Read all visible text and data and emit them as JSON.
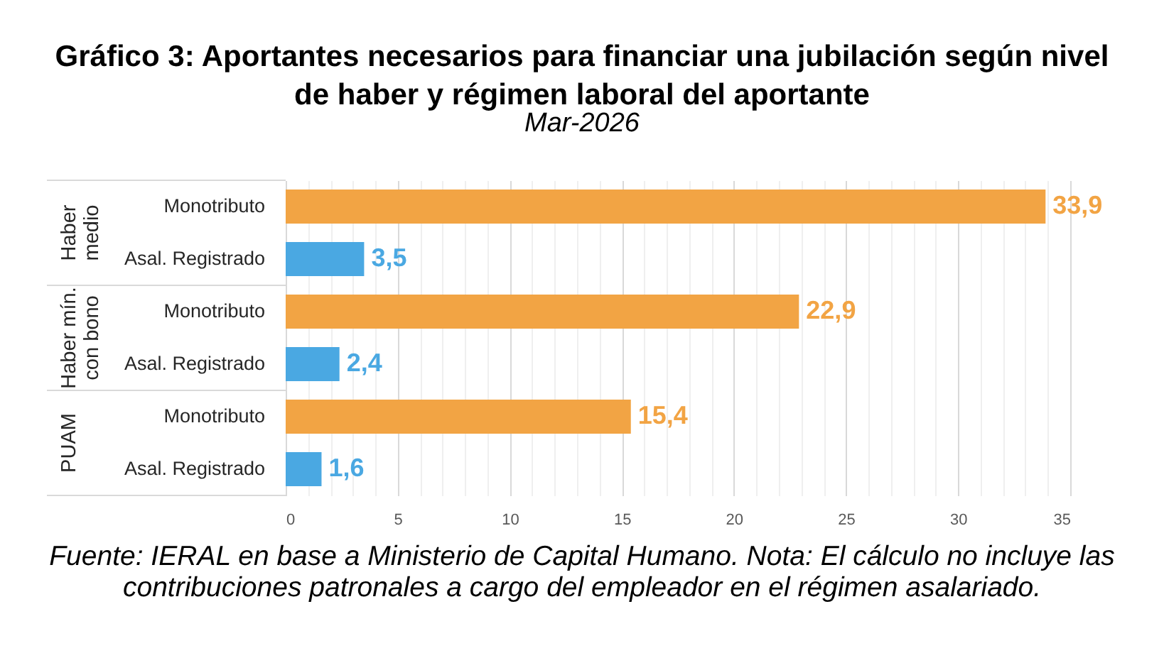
{
  "chart_data": {
    "type": "bar",
    "orientation": "horizontal",
    "title": "Gráfico 3: Aportantes necesarios para financiar una jubilación según nivel de haber y régimen laboral del aportante",
    "subtitle": "Mar-2026",
    "categories": [
      "Monotributo",
      "Asal. Registrado",
      "Monotributo",
      "Asal. Registrado",
      "Monotributo",
      "Asal. Registrado"
    ],
    "values": [
      33.9,
      3.5,
      22.9,
      2.4,
      15.4,
      1.6
    ],
    "colors": [
      "#f2a444",
      "#4aa8e2",
      "#f2a444",
      "#4aa8e2",
      "#f2a444",
      "#4aa8e2"
    ],
    "value_labels": [
      "33,9",
      "3,5",
      "22,9",
      "2,4",
      "15,4",
      "1,6"
    ],
    "xlim": [
      0,
      35
    ],
    "xticks": [
      0,
      {
        "value": 1,
        "label": null
      },
      {
        "value": 2,
        "label": null
      },
      {
        "value": 3,
        "label": null
      },
      {
        "value": 4,
        "label": null
      },
      5,
      {
        "value": 6,
        "label": null
      },
      {
        "value": 7,
        "label": null
      },
      {
        "value": 8,
        "label": null
      },
      {
        "value": 9,
        "label": null
      },
      10,
      {
        "value": 11,
        "label": null
      },
      {
        "value": 12,
        "label": null
      },
      {
        "value": 13,
        "label": null
      },
      {
        "value": 14,
        "label": null
      },
      15,
      {
        "value": 16,
        "label": null
      },
      {
        "value": 17,
        "label": null
      },
      {
        "value": 18,
        "label": null
      },
      {
        "value": 19,
        "label": null
      },
      20,
      {
        "value": 21,
        "label": null
      },
      {
        "value": 22,
        "label": null
      },
      {
        "value": 23,
        "label": null
      },
      {
        "value": 24,
        "label": null
      },
      25,
      {
        "value": 26,
        "label": null
      },
      {
        "value": 27,
        "label": null
      },
      {
        "value": 28,
        "label": null
      },
      {
        "value": 29,
        "label": null
      },
      30,
      {
        "value": 31,
        "label": null
      },
      {
        "value": 32,
        "label": null
      },
      {
        "value": 33,
        "label": null
      },
      {
        "value": 34,
        "label": null
      },
      35
    ],
    "grid": "x",
    "annotations": [
      "Haber medio",
      "Haber mín. con bono",
      "PUAM",
      "Fuente: IERAL en base a Ministerio de Capital Humano. Nota: El cálculo no incluye las contribuciones patronales a cargo del empleador en el régimen asalariado."
    ]
  }
}
